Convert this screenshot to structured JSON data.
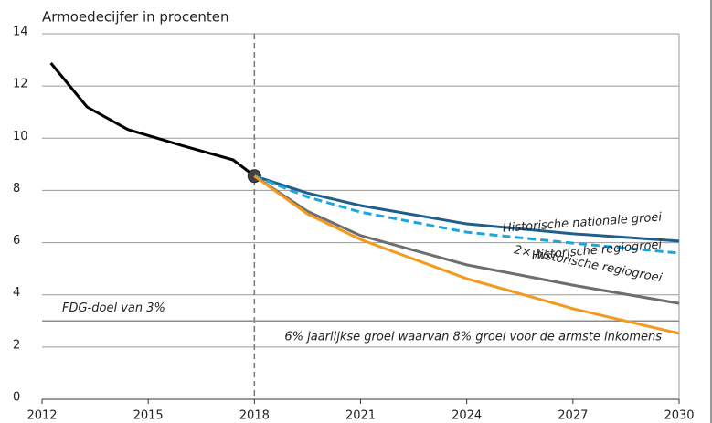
{
  "chart_data": {
    "type": "line",
    "title": "Armoedecijfer in procenten",
    "xlim": [
      2012,
      2030
    ],
    "xticks": [
      2012,
      2015,
      2018,
      2021,
      2024,
      2027,
      2030
    ],
    "ylim": [
      0,
      14
    ],
    "yticks": [
      0,
      2,
      4,
      6,
      8,
      10,
      12,
      14
    ],
    "grid": true,
    "vline": 2018,
    "reference_line": {
      "value": 3,
      "label": "FDG-doel van 3%",
      "color": "#8c8c8c"
    },
    "series": [
      {
        "color": "#000000",
        "dashed": false,
        "marker_last": true,
        "x": [
          2012.25,
          2013.27,
          2014.43,
          2016,
          2017.4,
          2018
        ],
        "values": [
          12.88,
          11.2,
          10.33,
          9.7,
          9.17,
          8.55
        ]
      },
      {
        "name": "Historische nationale groei",
        "color": "#1f5f8b",
        "dashed": false,
        "x": [
          2018,
          2019.5,
          2021,
          2024,
          2027,
          2030
        ],
        "values": [
          8.55,
          7.9,
          7.42,
          6.72,
          6.34,
          6.06
        ]
      },
      {
        "name": "Historische regiogroei",
        "color": "#1ba6e0",
        "dashed": true,
        "x": [
          2018,
          2019.5,
          2021,
          2024,
          2027,
          2030
        ],
        "values": [
          8.55,
          7.75,
          7.17,
          6.4,
          5.98,
          5.6
        ]
      },
      {
        "name": "2× historische regiogroei",
        "color": "#6e6e6e",
        "dashed": false,
        "x": [
          2018,
          2019.5,
          2021,
          2024,
          2027,
          2030
        ],
        "values": [
          8.55,
          7.2,
          6.27,
          5.15,
          4.37,
          3.67
        ]
      },
      {
        "name": "6% jaarlijkse groei waarvan 8% groei voor de armste inkomens",
        "color": "#f39a1e",
        "dashed": false,
        "x": [
          2018,
          2019.5,
          2021,
          2024,
          2027,
          2030
        ],
        "values": [
          8.55,
          7.1,
          6.12,
          4.62,
          3.47,
          2.52
        ]
      }
    ]
  }
}
